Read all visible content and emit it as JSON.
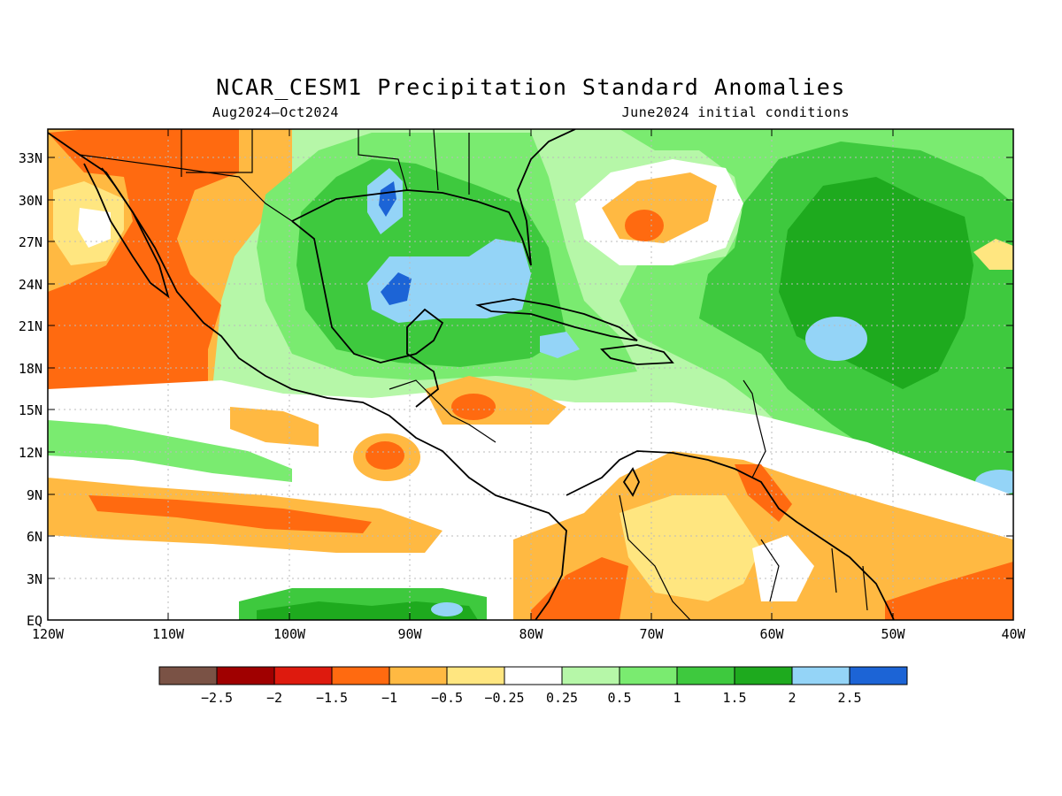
{
  "title": "NCAR_CESM1 Precipitation Standard Anomalies",
  "subtitle_left": "Aug2024–Oct2024",
  "subtitle_right": "June2024 initial conditions",
  "lat_labels": [
    "33N",
    "30N",
    "27N",
    "24N",
    "21N",
    "18N",
    "15N",
    "12N",
    "9N",
    "6N",
    "3N",
    "EQ"
  ],
  "lon_labels": [
    "120W",
    "110W",
    "100W",
    "90W",
    "80W",
    "70W",
    "60W",
    "50W",
    "40W"
  ],
  "colorbar": {
    "colors": [
      "#7a5245",
      "#a00000",
      "#de1a0e",
      "#ff6a10",
      "#ffb942",
      "#ffe680",
      "#ffffff",
      "#b6f7a8",
      "#7aeb70",
      "#3ec93e",
      "#1eaa1e",
      "#94d4f7",
      "#1c64d6"
    ],
    "labels": [
      "−2.5",
      "−2",
      "−1.5",
      "−1",
      "−0.5",
      "−0.25",
      "0.25",
      "0.5",
      "1",
      "1.5",
      "2",
      "2.5"
    ]
  },
  "colors": {
    "strong_dry": "#ff6a10",
    "dry": "#ffb942",
    "slight_dry": "#ffe680",
    "slight_wet": "#b6f7a8",
    "wet": "#7aeb70",
    "wetter": "#3ec93e",
    "very_wet": "#1eaa1e",
    "extreme_wet": "#94d4f7",
    "max_wet": "#1c64d6"
  }
}
